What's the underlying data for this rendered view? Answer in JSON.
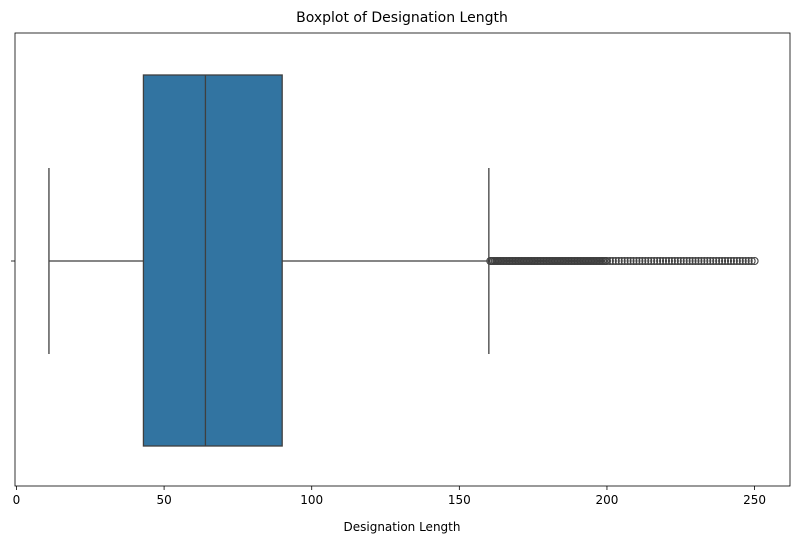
{
  "chart_data": {
    "type": "boxplot",
    "title": "Boxplot of Designation Length",
    "xlabel": "Designation Length",
    "ylabel": "",
    "xlim": [
      -0.5,
      262
    ],
    "x_ticks": [
      0,
      50,
      100,
      150,
      200,
      250
    ],
    "orientation": "horizontal",
    "grid": false,
    "box": {
      "whisker_low": 11,
      "q1": 43,
      "median": 64,
      "q3": 90,
      "whisker_high": 160,
      "fill_color": "#3274a1",
      "line_color": "#3f3f3f"
    },
    "outliers": [
      160.5,
      161,
      161.5,
      162,
      162.5,
      163,
      163.5,
      164,
      164.5,
      165,
      165.5,
      166,
      166.5,
      167,
      167.5,
      168,
      168.5,
      169,
      169.5,
      170,
      170.5,
      171,
      171.5,
      172,
      172.5,
      173,
      173.5,
      174,
      174.5,
      175,
      175.5,
      176,
      176.5,
      177,
      177.5,
      178,
      178.5,
      179,
      179.5,
      180,
      180.5,
      181,
      181.5,
      182,
      182.5,
      183,
      183.5,
      184,
      184.5,
      185,
      185.5,
      186,
      186.5,
      187,
      187.5,
      188,
      188.5,
      189,
      189.5,
      190,
      190.5,
      191,
      191.5,
      192,
      192.5,
      193,
      193.5,
      194,
      194.5,
      195,
      195.5,
      196,
      196.5,
      197,
      197.5,
      198,
      198.5,
      199,
      199.5,
      200,
      201,
      202,
      203,
      204,
      205,
      206,
      207,
      208,
      209,
      210,
      211,
      212,
      213,
      214,
      215,
      216,
      217,
      218,
      219,
      220,
      221,
      222,
      223,
      224,
      225,
      226,
      227,
      228,
      229,
      230,
      231,
      232,
      233,
      234,
      235,
      236,
      237,
      238,
      239,
      240,
      241,
      242,
      243,
      244,
      245,
      246,
      247,
      248,
      249,
      250
    ]
  }
}
